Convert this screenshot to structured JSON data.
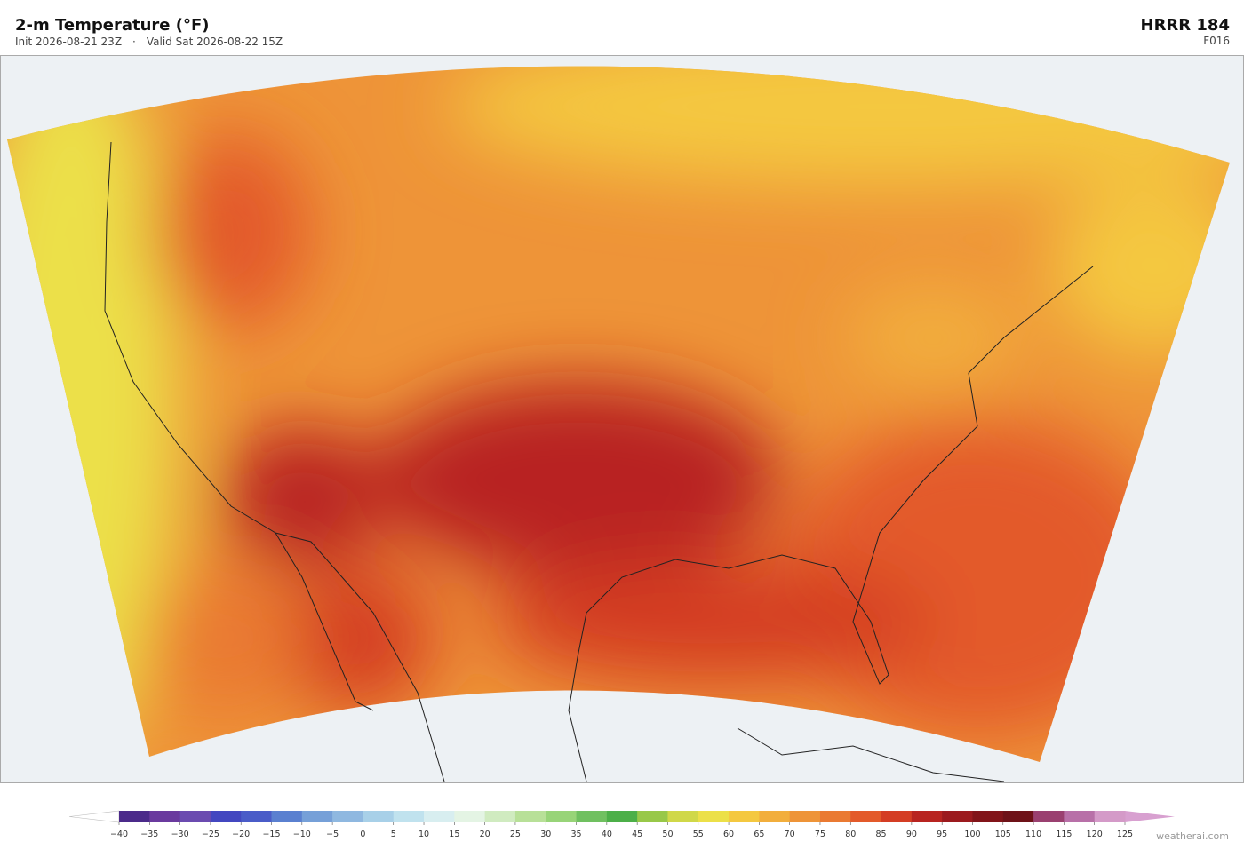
{
  "header": {
    "title": "2-m Temperature  (°F)",
    "init": "Init 2026-08-21 23Z",
    "separator": "·",
    "valid": "Valid Sat 2026-08-22 15Z",
    "model": "HRRR  184",
    "forecast_hour": "F016"
  },
  "colorbar": {
    "ticks": [
      {
        "value": -40,
        "label": "−40"
      },
      {
        "value": -35,
        "label": "−35"
      },
      {
        "value": -30,
        "label": "−30"
      },
      {
        "value": -25,
        "label": "−25"
      },
      {
        "value": -20,
        "label": "−20"
      },
      {
        "value": -15,
        "label": "−15"
      },
      {
        "value": -10,
        "label": "−10"
      },
      {
        "value": -5,
        "label": "−5"
      },
      0,
      5,
      10,
      15,
      20,
      25,
      30,
      35,
      40,
      45,
      50,
      55,
      60,
      65,
      70,
      75,
      80,
      85,
      90,
      95,
      100,
      105,
      110,
      115,
      120,
      125
    ],
    "colors": [
      "#4b2a8a",
      "#6a3a9e",
      "#6b4bb0",
      "#4347c0",
      "#4a5cc8",
      "#5a80d0",
      "#76a0d8",
      "#8fb8e0",
      "#a8d0e8",
      "#c0e2ee",
      "#d8eef0",
      "#e4f4e4",
      "#d0ebc0",
      "#b8e098",
      "#98d478",
      "#70c060",
      "#4caf48",
      "#98c848",
      "#d0d848",
      "#ece048",
      "#f4c840",
      "#f2ae3c",
      "#ee9438",
      "#ea7a32",
      "#e35a2a",
      "#d43d24",
      "#b82420",
      "#9c1a1e",
      "#821419",
      "#6e1218",
      "#9a4070",
      "#b870a8",
      "#d49ac8"
    ],
    "under_color": "#ffffff",
    "over_color": "#d8a0d0"
  },
  "watermark": "weatherai.com"
}
